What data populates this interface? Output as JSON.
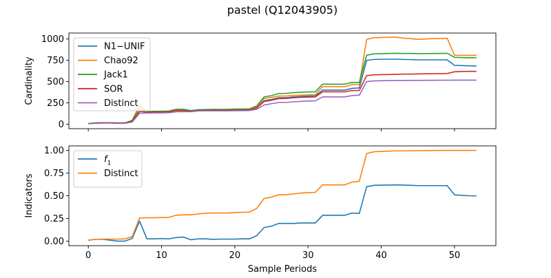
{
  "title": "pastel (Q12043905)",
  "chart_data": [
    {
      "type": "line",
      "title": "pastel (Q12043905)",
      "ylabel": "Cardinality",
      "xlabel": "",
      "xlim": [
        -2.65,
        55.65
      ],
      "ylim": [
        -53,
        1070
      ],
      "xticks": [
        0,
        10,
        20,
        30,
        40,
        50
      ],
      "xticklabels_visible": false,
      "yticks": [
        0,
        250,
        500,
        750,
        1000
      ],
      "legend": "upper-left",
      "grid": false,
      "x": [
        0,
        1,
        2,
        3,
        4,
        5,
        6,
        7,
        8,
        9,
        10,
        11,
        12,
        13,
        14,
        15,
        16,
        17,
        18,
        19,
        20,
        21,
        22,
        23,
        24,
        25,
        26,
        27,
        28,
        29,
        30,
        31,
        32,
        33,
        34,
        35,
        36,
        37,
        38,
        39,
        40,
        41,
        42,
        43,
        44,
        45,
        46,
        47,
        48,
        49,
        50,
        51,
        52,
        53
      ],
      "series": [
        {
          "name": "N1−UNIF",
          "color": "#1f77b4",
          "values": [
            5,
            12,
            14,
            14,
            12,
            12,
            30,
            158,
            145,
            148,
            148,
            150,
            162,
            163,
            152,
            162,
            165,
            165,
            165,
            165,
            168,
            168,
            170,
            195,
            275,
            290,
            310,
            310,
            320,
            325,
            330,
            332,
            400,
            400,
            400,
            400,
            420,
            425,
            750,
            760,
            762,
            763,
            763,
            760,
            758,
            755,
            755,
            755,
            755,
            755,
            690,
            688,
            685,
            683
          ]
        },
        {
          "name": "Chao92",
          "color": "#ff7f0e",
          "values": [
            6,
            14,
            16,
            16,
            14,
            14,
            40,
            185,
            145,
            150,
            150,
            152,
            170,
            172,
            158,
            168,
            170,
            172,
            172,
            172,
            175,
            175,
            178,
            205,
            300,
            315,
            330,
            330,
            338,
            340,
            345,
            347,
            440,
            440,
            440,
            440,
            465,
            465,
            995,
            1015,
            1018,
            1020,
            1022,
            1010,
            1005,
            995,
            1000,
            1005,
            1005,
            1008,
            810,
            808,
            808,
            808
          ]
        },
        {
          "name": "Jack1",
          "color": "#2ca02c",
          "values": [
            7,
            15,
            17,
            17,
            15,
            15,
            45,
            215,
            148,
            152,
            152,
            155,
            175,
            175,
            160,
            170,
            172,
            174,
            174,
            174,
            178,
            178,
            180,
            215,
            320,
            335,
            360,
            362,
            370,
            375,
            378,
            380,
            470,
            470,
            470,
            470,
            490,
            490,
            810,
            825,
            828,
            830,
            832,
            830,
            830,
            828,
            828,
            830,
            830,
            832,
            785,
            782,
            780,
            780
          ]
        },
        {
          "name": "SOR",
          "color": "#d62728",
          "values": [
            6,
            13,
            15,
            15,
            13,
            13,
            35,
            150,
            140,
            143,
            143,
            145,
            160,
            160,
            150,
            160,
            162,
            163,
            163,
            163,
            165,
            165,
            167,
            190,
            265,
            280,
            300,
            302,
            310,
            315,
            318,
            320,
            380,
            380,
            380,
            380,
            395,
            395,
            570,
            580,
            582,
            583,
            585,
            588,
            588,
            590,
            592,
            592,
            593,
            595,
            615,
            618,
            620,
            620
          ]
        },
        {
          "name": "Distinct",
          "color": "#9467bd",
          "values": [
            5,
            10,
            12,
            12,
            10,
            10,
            25,
            128,
            130,
            132,
            132,
            134,
            145,
            146,
            146,
            155,
            156,
            156,
            156,
            156,
            158,
            158,
            160,
            175,
            225,
            240,
            255,
            255,
            262,
            268,
            272,
            274,
            320,
            320,
            320,
            320,
            335,
            340,
            500,
            508,
            510,
            512,
            512,
            513,
            514,
            514,
            515,
            515,
            516,
            516,
            517,
            517,
            517,
            517
          ]
        }
      ]
    },
    {
      "type": "line",
      "title": "",
      "ylabel": "Indicators",
      "xlabel": "Sample Periods",
      "xlim": [
        -2.65,
        55.65
      ],
      "ylim": [
        -0.05,
        1.05
      ],
      "xticks": [
        0,
        10,
        20,
        30,
        40,
        50
      ],
      "yticks": [
        0.0,
        0.25,
        0.5,
        0.75,
        1.0
      ],
      "yticklabels": [
        "0.00",
        "0.25",
        "0.50",
        "0.75",
        "1.00"
      ],
      "legend": "upper-left",
      "grid": false,
      "x": [
        0,
        1,
        2,
        3,
        4,
        5,
        6,
        7,
        8,
        9,
        10,
        11,
        12,
        13,
        14,
        15,
        16,
        17,
        18,
        19,
        20,
        21,
        22,
        23,
        24,
        25,
        26,
        27,
        28,
        29,
        30,
        31,
        32,
        33,
        34,
        35,
        36,
        37,
        38,
        39,
        40,
        41,
        42,
        43,
        44,
        45,
        46,
        47,
        48,
        49,
        50,
        51,
        52,
        53
      ],
      "series": [
        {
          "name": "f1",
          "label_main": "f",
          "label_sub": "1",
          "color": "#1f77b4",
          "values": [
            0.01,
            0.02,
            0.02,
            0.01,
            0.0,
            0.0,
            0.03,
            0.22,
            0.025,
            0.025,
            0.028,
            0.025,
            0.04,
            0.045,
            0.015,
            0.025,
            0.025,
            0.02,
            0.022,
            0.022,
            0.022,
            0.025,
            0.025,
            0.06,
            0.15,
            0.165,
            0.195,
            0.195,
            0.195,
            0.2,
            0.2,
            0.2,
            0.285,
            0.285,
            0.285,
            0.285,
            0.31,
            0.305,
            0.6,
            0.615,
            0.617,
            0.618,
            0.62,
            0.618,
            0.615,
            0.612,
            0.612,
            0.612,
            0.612,
            0.612,
            0.51,
            0.505,
            0.5,
            0.498
          ]
        },
        {
          "name": "Distinct",
          "color": "#ff7f0e",
          "values": [
            0.01,
            0.02,
            0.022,
            0.022,
            0.022,
            0.025,
            0.05,
            0.255,
            0.258,
            0.258,
            0.26,
            0.262,
            0.285,
            0.29,
            0.29,
            0.3,
            0.308,
            0.31,
            0.31,
            0.31,
            0.315,
            0.318,
            0.32,
            0.36,
            0.47,
            0.485,
            0.51,
            0.512,
            0.52,
            0.53,
            0.535,
            0.538,
            0.62,
            0.62,
            0.62,
            0.62,
            0.65,
            0.66,
            0.965,
            0.985,
            0.99,
            0.992,
            0.995,
            0.995,
            0.996,
            0.997,
            0.998,
            0.999,
            0.999,
            1.0,
            1.0,
            1.0,
            1.0,
            1.0
          ]
        }
      ]
    }
  ]
}
